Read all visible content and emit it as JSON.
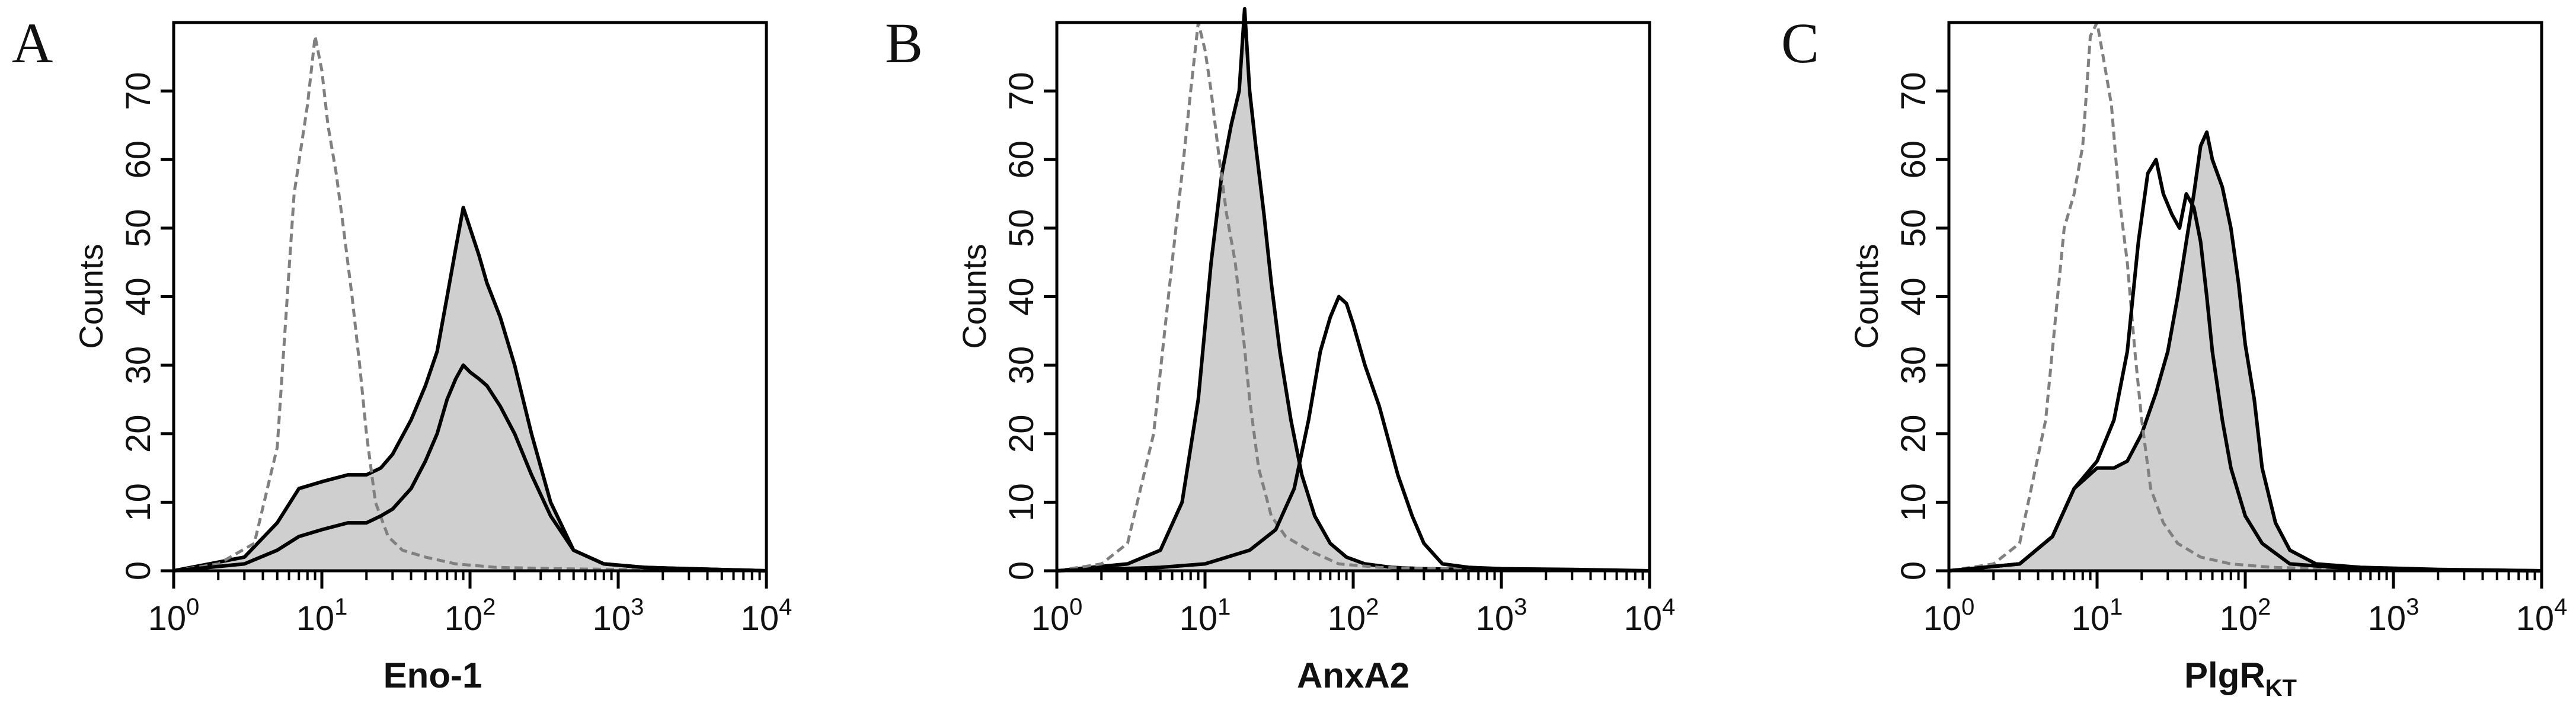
{
  "chart_data": [
    {
      "type": "area",
      "panel_label": "A",
      "xlabel": "Eno-1",
      "xlabel_sub": "",
      "ylabel": "Counts",
      "xscale": "log",
      "xlim": [
        1,
        10000
      ],
      "ylim": [
        0,
        80
      ],
      "xticks": [
        1,
        10,
        100,
        1000,
        10000
      ],
      "xtick_labels": [
        {
          "base": "10",
          "exp": "0"
        },
        {
          "base": "10",
          "exp": "1"
        },
        {
          "base": "10",
          "exp": "2"
        },
        {
          "base": "10",
          "exp": "3"
        },
        {
          "base": "10",
          "exp": "4"
        }
      ],
      "yticks": [
        0,
        10,
        20,
        30,
        40,
        50,
        60,
        70
      ],
      "ytick_labels": [
        "0",
        "10",
        "20",
        "30",
        "40",
        "50",
        "60",
        "70"
      ],
      "grid": false,
      "series": [
        {
          "style": "dashed-gray",
          "fill": false,
          "x": [
            1,
            2,
            3.5,
            5,
            6.5,
            8,
            9,
            10,
            11,
            12.5,
            14,
            16,
            18,
            20,
            23,
            28,
            35,
            50,
            80,
            150,
            400,
            1000,
            2500,
            10000
          ],
          "y": [
            0,
            1,
            4,
            18,
            55,
            68,
            78,
            73,
            65,
            58,
            50,
            40,
            30,
            20,
            10,
            5,
            3,
            2,
            1,
            0.5,
            0.3,
            0.2,
            0.2,
            0
          ]
        },
        {
          "style": "solid-black",
          "fill": true,
          "x": [
            1,
            3,
            5,
            7,
            10,
            15,
            20,
            25,
            30,
            40,
            50,
            60,
            70,
            80,
            90,
            100,
            115,
            130,
            160,
            200,
            260,
            350,
            500,
            800,
            1500,
            3000,
            10000
          ],
          "y": [
            0,
            2,
            7,
            12,
            13,
            14,
            14,
            15,
            17,
            22,
            27,
            32,
            40,
            47,
            53,
            50,
            46,
            42,
            37,
            30,
            20,
            10,
            3,
            1,
            0.5,
            0.3,
            0
          ]
        },
        {
          "style": "solid-black",
          "fill": false,
          "x": [
            1,
            3,
            5,
            7,
            10,
            15,
            20,
            25,
            30,
            40,
            50,
            60,
            70,
            80,
            90,
            100,
            115,
            130,
            160,
            200,
            260,
            350,
            500,
            800,
            1500,
            3000,
            10000
          ],
          "y": [
            0,
            1,
            3,
            5,
            6,
            7,
            7,
            8,
            9,
            12,
            16,
            20,
            25,
            28,
            30,
            29,
            28,
            27,
            24,
            20,
            14,
            8,
            3,
            1,
            0.5,
            0.3,
            0
          ]
        }
      ]
    },
    {
      "type": "area",
      "panel_label": "B",
      "xlabel": "AnxA2",
      "xlabel_sub": "",
      "ylabel": "Counts",
      "xscale": "log",
      "xlim": [
        1,
        10000
      ],
      "ylim": [
        0,
        80
      ],
      "xticks": [
        1,
        10,
        100,
        1000,
        10000
      ],
      "xtick_labels": [
        {
          "base": "10",
          "exp": "0"
        },
        {
          "base": "10",
          "exp": "1"
        },
        {
          "base": "10",
          "exp": "2"
        },
        {
          "base": "10",
          "exp": "3"
        },
        {
          "base": "10",
          "exp": "4"
        }
      ],
      "yticks": [
        0,
        10,
        20,
        30,
        40,
        50,
        60,
        70
      ],
      "ytick_labels": [
        "0",
        "10",
        "20",
        "30",
        "40",
        "50",
        "60",
        "70"
      ],
      "grid": false,
      "series": [
        {
          "style": "dashed-gray",
          "fill": false,
          "x": [
            1,
            2,
            3,
            4.5,
            6,
            7,
            8,
            9,
            10,
            11,
            12.5,
            14,
            16,
            18,
            20,
            23,
            28,
            35,
            50,
            80,
            150,
            400,
            1000,
            10000
          ],
          "y": [
            0,
            1,
            4,
            20,
            45,
            58,
            70,
            80,
            76,
            70,
            60,
            52,
            45,
            35,
            25,
            15,
            8,
            5,
            3,
            1,
            0.5,
            0.3,
            0.2,
            0
          ]
        },
        {
          "style": "solid-black",
          "fill": true,
          "x": [
            1,
            3,
            5,
            7,
            9,
            11,
            13,
            15,
            17,
            18.5,
            20,
            22,
            25,
            28,
            32,
            38,
            45,
            55,
            70,
            90,
            120,
            180,
            300,
            600,
            2000,
            10000
          ],
          "y": [
            0,
            1,
            3,
            10,
            25,
            45,
            58,
            65,
            70,
            82,
            70,
            62,
            52,
            42,
            32,
            22,
            14,
            8,
            4,
            2,
            1,
            0.5,
            0.3,
            0.2,
            0.1,
            0
          ]
        },
        {
          "style": "solid-black",
          "fill": false,
          "x": [
            1,
            5,
            10,
            20,
            30,
            40,
            50,
            60,
            70,
            80,
            90,
            100,
            120,
            150,
            200,
            250,
            300,
            400,
            600,
            1000,
            3000,
            10000
          ],
          "y": [
            0,
            0.5,
            1,
            3,
            6,
            12,
            22,
            32,
            37,
            40,
            39,
            36,
            30,
            24,
            14,
            8,
            4,
            1,
            0.5,
            0.3,
            0.2,
            0
          ]
        }
      ]
    },
    {
      "type": "area",
      "panel_label": "C",
      "xlabel": "PlgR",
      "xlabel_sub": "KT",
      "ylabel": "Counts",
      "xscale": "log",
      "xlim": [
        1,
        10000
      ],
      "ylim": [
        0,
        80
      ],
      "xticks": [
        1,
        10,
        100,
        1000,
        10000
      ],
      "xtick_labels": [
        {
          "base": "10",
          "exp": "0"
        },
        {
          "base": "10",
          "exp": "1"
        },
        {
          "base": "10",
          "exp": "2"
        },
        {
          "base": "10",
          "exp": "3"
        },
        {
          "base": "10",
          "exp": "4"
        }
      ],
      "yticks": [
        0,
        10,
        20,
        30,
        40,
        50,
        60,
        70
      ],
      "ytick_labels": [
        "0",
        "10",
        "20",
        "30",
        "40",
        "50",
        "60",
        "70"
      ],
      "grid": false,
      "series": [
        {
          "style": "dashed-gray",
          "fill": false,
          "x": [
            1,
            2,
            3,
            4.5,
            6,
            7,
            8,
            9,
            10,
            11,
            12.5,
            14,
            16,
            18,
            20,
            23,
            28,
            35,
            50,
            80,
            150,
            400,
            1000,
            10000
          ],
          "y": [
            0,
            1,
            4,
            22,
            50,
            55,
            62,
            78,
            80,
            75,
            68,
            55,
            45,
            32,
            22,
            12,
            7,
            4,
            2,
            1,
            0.5,
            0.3,
            0.2,
            0
          ]
        },
        {
          "style": "solid-black",
          "fill": true,
          "x": [
            1,
            3,
            5,
            7,
            10,
            13,
            16,
            20,
            25,
            30,
            35,
            40,
            45,
            50,
            55,
            60,
            70,
            80,
            90,
            100,
            115,
            130,
            160,
            200,
            300,
            600,
            2000,
            10000
          ],
          "y": [
            0,
            1,
            5,
            12,
            15,
            15,
            16,
            20,
            26,
            32,
            40,
            48,
            55,
            62,
            64,
            60,
            56,
            50,
            42,
            33,
            25,
            15,
            7,
            3,
            1,
            0.5,
            0.2,
            0
          ]
        },
        {
          "style": "solid-black",
          "fill": false,
          "x": [
            1,
            3,
            5,
            7,
            10,
            13,
            16,
            19,
            22,
            25,
            28,
            32,
            36,
            40,
            45,
            50,
            55,
            60,
            70,
            80,
            100,
            130,
            200,
            400,
            1000,
            10000
          ],
          "y": [
            0,
            1,
            5,
            12,
            16,
            22,
            32,
            48,
            58,
            60,
            55,
            52,
            50,
            55,
            53,
            48,
            40,
            32,
            22,
            15,
            8,
            4,
            1,
            0.5,
            0.2,
            0
          ]
        }
      ]
    }
  ]
}
